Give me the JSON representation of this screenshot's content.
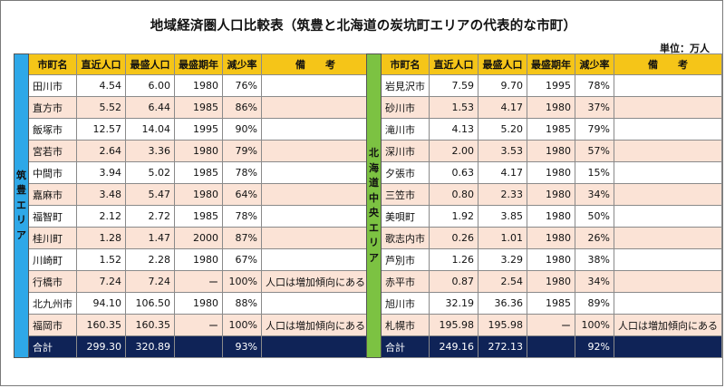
{
  "title": "地域経済圏人口比較表（筑豊と北海道の炭坑町エリアの代表的な市町）",
  "unit_label": "単位：万人",
  "headers": [
    "市町名",
    "直近人口",
    "最盛人口",
    "最盛期年",
    "減少率",
    "備　　考"
  ],
  "regions": [
    {
      "label": "筑豊エリア",
      "color": "#2ea8e8",
      "rows": [
        {
          "name": "田川市",
          "current": "4.54",
          "peak": "6.00",
          "peak_year": "1980",
          "decline": "76%",
          "note": ""
        },
        {
          "name": "直方市",
          "current": "5.52",
          "peak": "6.44",
          "peak_year": "1985",
          "decline": "86%",
          "note": ""
        },
        {
          "name": "飯塚市",
          "current": "12.57",
          "peak": "14.04",
          "peak_year": "1995",
          "decline": "90%",
          "note": ""
        },
        {
          "name": "宮若市",
          "current": "2.64",
          "peak": "3.36",
          "peak_year": "1980",
          "decline": "79%",
          "note": ""
        },
        {
          "name": "中間市",
          "current": "3.94",
          "peak": "5.02",
          "peak_year": "1985",
          "decline": "78%",
          "note": ""
        },
        {
          "name": "嘉麻市",
          "current": "3.48",
          "peak": "5.47",
          "peak_year": "1980",
          "decline": "64%",
          "note": ""
        },
        {
          "name": "福智町",
          "current": "2.12",
          "peak": "2.72",
          "peak_year": "1985",
          "decline": "78%",
          "note": ""
        },
        {
          "name": "桂川町",
          "current": "1.28",
          "peak": "1.47",
          "peak_year": "2000",
          "decline": "87%",
          "note": ""
        },
        {
          "name": "川崎町",
          "current": "1.52",
          "peak": "2.28",
          "peak_year": "1980",
          "decline": "67%",
          "note": ""
        },
        {
          "name": "行橋市",
          "current": "7.24",
          "peak": "7.24",
          "peak_year": "ー",
          "decline": "100%",
          "note": "人口は増加傾向にある"
        },
        {
          "name": "北九州市",
          "current": "94.10",
          "peak": "106.50",
          "peak_year": "1980",
          "decline": "88%",
          "note": ""
        },
        {
          "name": "福岡市",
          "current": "160.35",
          "peak": "160.35",
          "peak_year": "ー",
          "decline": "100%",
          "note": "人口は増加傾向にある"
        }
      ],
      "total": {
        "name": "合計",
        "current": "299.30",
        "peak": "320.89",
        "peak_year": "",
        "decline": "93%",
        "note": ""
      }
    },
    {
      "label": "北海道中央エリア",
      "color": "#7cc242",
      "rows": [
        {
          "name": "岩見沢市",
          "current": "7.59",
          "peak": "9.70",
          "peak_year": "1995",
          "decline": "78%",
          "note": ""
        },
        {
          "name": "砂川市",
          "current": "1.53",
          "peak": "4.17",
          "peak_year": "1980",
          "decline": "37%",
          "note": ""
        },
        {
          "name": "滝川市",
          "current": "4.13",
          "peak": "5.20",
          "peak_year": "1985",
          "decline": "79%",
          "note": ""
        },
        {
          "name": "深川市",
          "current": "2.00",
          "peak": "3.53",
          "peak_year": "1980",
          "decline": "57%",
          "note": ""
        },
        {
          "name": "夕張市",
          "current": "0.63",
          "peak": "4.17",
          "peak_year": "1980",
          "decline": "15%",
          "note": ""
        },
        {
          "name": "三笠市",
          "current": "0.80",
          "peak": "2.33",
          "peak_year": "1980",
          "decline": "34%",
          "note": ""
        },
        {
          "name": "美唄町",
          "current": "1.92",
          "peak": "3.85",
          "peak_year": "1980",
          "decline": "50%",
          "note": ""
        },
        {
          "name": "歌志内市",
          "current": "0.26",
          "peak": "1.01",
          "peak_year": "1980",
          "decline": "26%",
          "note": ""
        },
        {
          "name": "芦別市",
          "current": "1.26",
          "peak": "3.29",
          "peak_year": "1980",
          "decline": "38%",
          "note": ""
        },
        {
          "name": "赤平市",
          "current": "0.87",
          "peak": "2.54",
          "peak_year": "1980",
          "decline": "34%",
          "note": ""
        },
        {
          "name": "旭川市",
          "current": "32.19",
          "peak": "36.36",
          "peak_year": "1985",
          "decline": "89%",
          "note": ""
        },
        {
          "name": "札幌市",
          "current": "195.98",
          "peak": "195.98",
          "peak_year": "ー",
          "decline": "100%",
          "note": "人口は増加傾向にある"
        }
      ],
      "total": {
        "name": "合計",
        "current": "249.16",
        "peak": "272.13",
        "peak_year": "",
        "decline": "92%",
        "note": ""
      }
    }
  ]
}
